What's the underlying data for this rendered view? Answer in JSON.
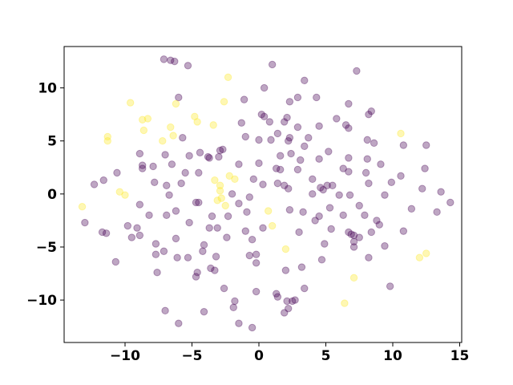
{
  "chart_data": {
    "type": "scatter",
    "xlim": [
      -14.55,
      15.15
    ],
    "ylim": [
      -14.0,
      13.9
    ],
    "xticks": [
      {
        "value": -10,
        "label": "−10"
      },
      {
        "value": -5,
        "label": "−5"
      },
      0,
      5,
      10,
      15
    ],
    "yticks": [
      {
        "value": -10,
        "label": "−10"
      },
      {
        "value": -5,
        "label": "−5"
      },
      0,
      5,
      10
    ],
    "alpha": 0.35,
    "series": [
      {
        "color": "#440154",
        "x": [
          -7.1,
          -6.6,
          -6.3,
          -5.3,
          1.0,
          7.3,
          3.4,
          0.4,
          -6.0,
          -1.1,
          2.3,
          2.9,
          4.3,
          6.7,
          8.4,
          8.2,
          0.2,
          0.4,
          -1.3,
          0.8,
          1.9,
          2.1,
          2.9,
          4.5,
          6.5,
          6.7,
          5.8,
          -5.7,
          -8.9,
          -7.0,
          -5.2,
          -4.4,
          -3.8,
          -3.7,
          -2.9,
          -2.7,
          -3.0,
          -1.0,
          0.0,
          0.9,
          1.4,
          2.2,
          2.3,
          3.7,
          3.4,
          1.6,
          2.4,
          5.2,
          8.1,
          8.6,
          10.8,
          12.5,
          6.7,
          8.1,
          4.5,
          3.1,
          -8.7,
          -7.9,
          -6.5,
          -8.7,
          -5.5,
          -4.5,
          -1.5,
          0.0,
          1.3,
          1.6,
          2.9,
          6.3,
          6.7,
          8.0,
          9.1,
          -10.6,
          -11.6,
          -12.3,
          -7.8,
          -6.9,
          -5.8,
          -0.4,
          0.3,
          1.4,
          1.9,
          2.2,
          4.0,
          4.6,
          5.1,
          5.5,
          4.8,
          8.2,
          9.9,
          12.2,
          10.6,
          12.4,
          -6.7,
          -4.7,
          -4.5,
          -1.5,
          -2.0,
          -0.7,
          4.0,
          6.0,
          6.8,
          9.4,
          13.6,
          14.3,
          11.4,
          13.3,
          -8.9,
          -8.2,
          -6.9,
          -6.2,
          -3.5,
          -2.3,
          -0.9,
          2.3,
          3.3,
          4.5,
          5.3,
          6.3,
          7.5,
          7.9,
          8.8,
          9.0,
          -13.0,
          -11.7,
          -11.4,
          -9.5,
          -8.9,
          -9.8,
          -9.1,
          -5.2,
          -3.7,
          -3.1,
          -2.4,
          -1.0,
          0.3,
          -0.5,
          3.0,
          4.2,
          5.4,
          6.7,
          6.9,
          7.1,
          7.5,
          8.4,
          10.8,
          9.4,
          -7.7,
          -6.2,
          -4.1,
          4.9,
          7.1,
          7.1,
          -0.7,
          -0.2,
          -0.2,
          -10.7,
          -7.7,
          -7.1,
          -6.1,
          -5.3,
          -4.2,
          -3.2,
          4.7,
          8.2,
          -7.6,
          -3.6,
          -3.3,
          -4.6,
          -4.7,
          2.0,
          3.2,
          3.4,
          9.8,
          -2.6,
          -0.2,
          1.3,
          1.4,
          -1.8,
          -1.9,
          2.1,
          2.5,
          2.7,
          2.2,
          -7.0,
          -4.1,
          1.9,
          -6.0,
          -1.5,
          -0.5
        ],
        "y": [
          12.7,
          12.6,
          12.5,
          12.1,
          12.2,
          11.6,
          10.7,
          10.0,
          9.1,
          8.9,
          8.7,
          9.1,
          9.1,
          8.5,
          7.8,
          7.5,
          7.5,
          7.3,
          6.7,
          6.8,
          6.8,
          7.2,
          6.3,
          6.4,
          6.5,
          6.2,
          7.1,
          5.3,
          3.8,
          3.7,
          3.6,
          3.9,
          3.5,
          3.4,
          4.1,
          4.2,
          3.5,
          5.4,
          5.1,
          5.1,
          5.7,
          5.0,
          5.3,
          5.3,
          4.5,
          3.6,
          3.8,
          4.0,
          5.1,
          4.8,
          4.6,
          4.6,
          3.4,
          3.3,
          3.3,
          3.2,
          2.7,
          2.6,
          2.8,
          2.4,
          2.0,
          2.0,
          2.8,
          2.9,
          2.4,
          2.3,
          2.3,
          2.4,
          2.1,
          2.0,
          2.8,
          2.0,
          1.3,
          0.9,
          1.1,
          0.8,
          1.0,
          1.4,
          0.9,
          1.0,
          0.8,
          0.5,
          1.4,
          0.6,
          0.8,
          0.8,
          0.4,
          1.0,
          1.1,
          0.5,
          1.7,
          2.4,
          -0.1,
          -0.8,
          -0.8,
          -0.9,
          0.0,
          -0.3,
          0.0,
          -0.1,
          -0.1,
          -0.1,
          0.2,
          -0.8,
          -1.4,
          -1.7,
          -1.0,
          -2.0,
          -2.0,
          -1.6,
          -2.1,
          -2.1,
          -1.7,
          -1.5,
          -1.7,
          -2.1,
          -1.3,
          -2.0,
          -1.1,
          -2.0,
          -2.5,
          -2.9,
          -2.7,
          -3.6,
          -3.7,
          -4.1,
          -3.9,
          -3.0,
          -3.2,
          -2.7,
          -3.2,
          -3.2,
          -4.1,
          -3.5,
          -3.2,
          -4.3,
          -3.6,
          -2.5,
          -3.3,
          -3.6,
          -3.8,
          -3.9,
          -4.1,
          -3.6,
          -3.5,
          -4.9,
          -4.7,
          -4.2,
          -4.8,
          -4.7,
          -5.0,
          -4.5,
          -5.8,
          -5.7,
          -6.5,
          -6.4,
          -5.7,
          -5.4,
          -6.0,
          -6.0,
          -5.4,
          -5.9,
          -6.2,
          -6.0,
          -7.4,
          -7.0,
          -7.2,
          -7.4,
          -7.8,
          -7.2,
          -6.9,
          -8.9,
          -8.7,
          -8.9,
          -9.2,
          -9.4,
          -9.7,
          -10.1,
          -10.7,
          -10.1,
          -10.1,
          -10.0,
          -10.8,
          -11.0,
          -11.1,
          -11.2,
          -12.2,
          -12.2,
          -12.6
        ]
      },
      {
        "color": "#fde725",
        "x": [
          -9.6,
          -8.7,
          -8.3,
          -8.6,
          -11.3,
          -11.3,
          -10.4,
          -10.0,
          -13.2,
          -6.6,
          -7.2,
          -6.4,
          -6.2,
          -4.8,
          -4.6,
          -3.4,
          -2.3,
          -2.6,
          -3.3,
          -2.9,
          -2.2,
          -1.8,
          -3.1,
          -2.8,
          -2.5,
          -2.9,
          0.7,
          1.0,
          2.0,
          10.6,
          12.0,
          12.5,
          6.4,
          7.1
        ],
        "y": [
          8.6,
          7.0,
          7.1,
          6.0,
          5.4,
          5.0,
          0.2,
          -0.1,
          -1.2,
          6.3,
          5.0,
          5.5,
          8.5,
          7.3,
          6.8,
          6.5,
          11.0,
          8.7,
          1.3,
          0.8,
          1.7,
          1.4,
          -0.6,
          -0.4,
          -1.1,
          0.3,
          -1.6,
          -3.0,
          -5.2,
          5.7,
          -6.0,
          -5.6,
          -10.3,
          -7.9
        ]
      }
    ]
  }
}
